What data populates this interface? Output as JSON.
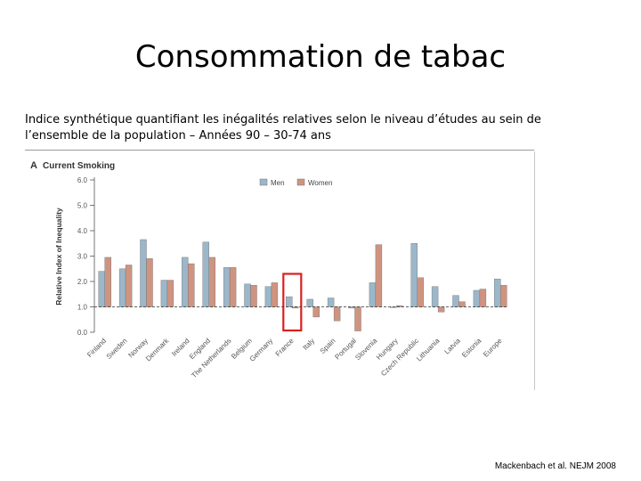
{
  "slide": {
    "title": "Consommation de tabac",
    "subtitle": "Indice synthétique quantifiant les inégalités relatives selon le niveau d’études au sein de l’ensemble de la population – Années 90 – 30-74 ans",
    "citation": "Mackenbach et al. NEJM 2008"
  },
  "chart_data": {
    "type": "bar",
    "panel_label": "A",
    "title": "Current Smoking",
    "ylabel": "Relative Index of Inequality",
    "ylim": [
      0,
      6
    ],
    "yticks": [
      "0.0",
      "1.0",
      "2.0",
      "3.0",
      "4.0",
      "5.0",
      "6.0"
    ],
    "reference_line": 1.0,
    "legend_position": "top-right",
    "categories": [
      "Finland",
      "Sweden",
      "Norway",
      "Denmark",
      "Ireland",
      "England",
      "The Netherlands",
      "Belgium",
      "Germany",
      "France",
      "Italy",
      "Spain",
      "Portugal",
      "Slovenia",
      "Hungary",
      "Czech Republic",
      "Lithuania",
      "Latvia",
      "Estonia",
      "Europe"
    ],
    "series": [
      {
        "name": "Men",
        "color": "#9bb7c9",
        "values": [
          2.4,
          2.5,
          3.65,
          2.05,
          2.95,
          3.55,
          2.55,
          1.9,
          1.8,
          1.4,
          1.3,
          1.35,
          0.95,
          1.95,
          1.0,
          3.5,
          1.8,
          1.45,
          1.65,
          2.1
        ]
      },
      {
        "name": "Women",
        "color": "#cf9480",
        "values": [
          2.95,
          2.65,
          2.9,
          2.05,
          2.7,
          2.95,
          2.55,
          1.85,
          1.95,
          0.95,
          0.6,
          0.45,
          0.05,
          3.45,
          1.05,
          2.15,
          0.8,
          1.2,
          1.7,
          1.85
        ]
      }
    ],
    "highlighted_category": "France",
    "highlight_color": "#dd1f1f"
  }
}
